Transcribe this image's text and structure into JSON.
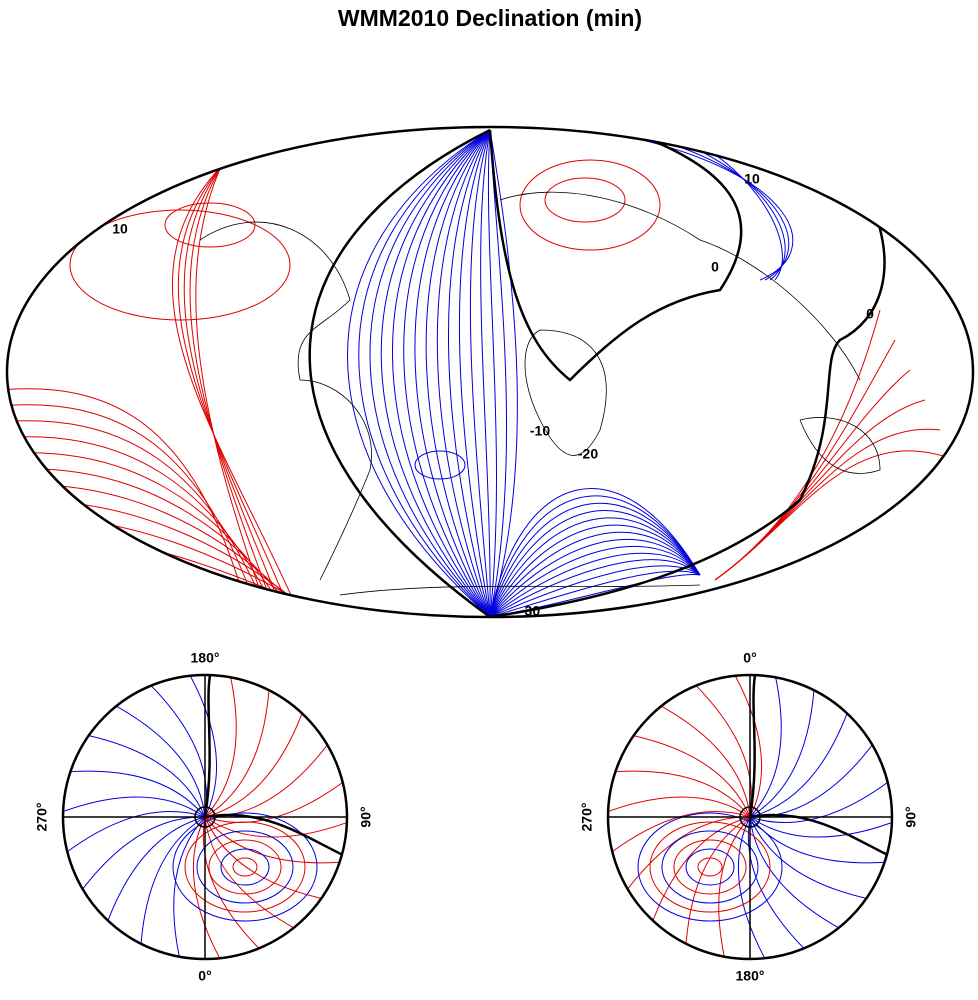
{
  "title": "WMM2010 Declination (min)",
  "main_map": {
    "contour_labels": [
      "10",
      "10",
      "0",
      "0",
      "-10",
      "-20",
      "-30"
    ]
  },
  "polar_maps": [
    {
      "top": "180°",
      "left": "270°",
      "right": "90°",
      "bottom": "0°"
    },
    {
      "top": "0°",
      "left": "270°",
      "right": "90°",
      "bottom": "180°"
    }
  ]
}
